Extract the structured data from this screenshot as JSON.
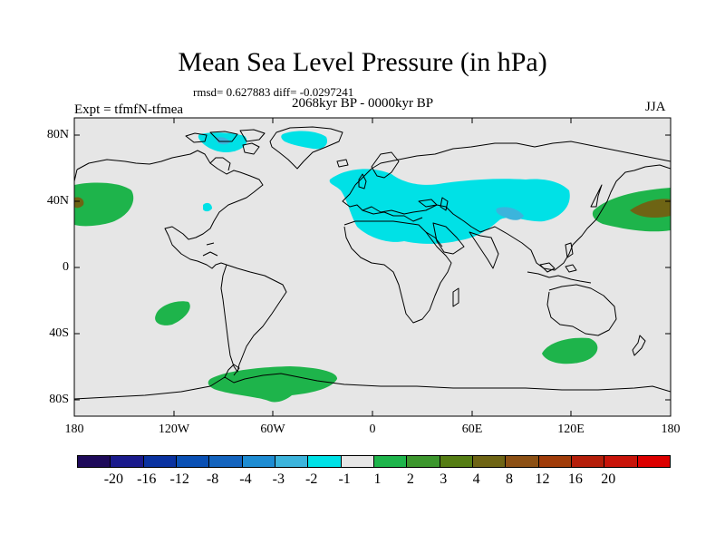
{
  "header": {
    "title": "Mean Sea Level Pressure (in hPa)",
    "stats": "rmsd= 0.627883 diff= -0.0297241",
    "period": "2068kyr BP - 0000kyr BP",
    "experiment": "Expt = tfmfN-tfmea",
    "season": "JJA"
  },
  "axes": {
    "lat_labels": [
      "80N",
      "40N",
      "0",
      "40S",
      "80S"
    ],
    "lon_labels": [
      "180",
      "120W",
      "60W",
      "0",
      "60E",
      "120E",
      "180"
    ]
  },
  "colorbar": {
    "colors": [
      "#1e0a5a",
      "#1a1a8c",
      "#0a32a0",
      "#0a50b4",
      "#1464be",
      "#1e8cd2",
      "#3cb4dc",
      "#00e1e6",
      "#e6e6e6",
      "#1eb44b",
      "#3c962d",
      "#557d14",
      "#6e6414",
      "#8c5014",
      "#a03c0a",
      "#b41e0a",
      "#c8140a",
      "#dc0000"
    ],
    "labels": [
      "-20",
      "-16",
      "-12",
      "-8",
      "-4",
      "-3",
      "-2",
      "-1",
      "1",
      "2",
      "3",
      "4",
      "8",
      "12",
      "16",
      "20"
    ],
    "map_colors": {
      "ocean": "#e6e6e6",
      "light_green": "#1eb44b",
      "dark_olive": "#6e6414",
      "cyan": "#00e1e6",
      "mid_blue": "#3cb4dc",
      "coast": "#000000"
    }
  }
}
